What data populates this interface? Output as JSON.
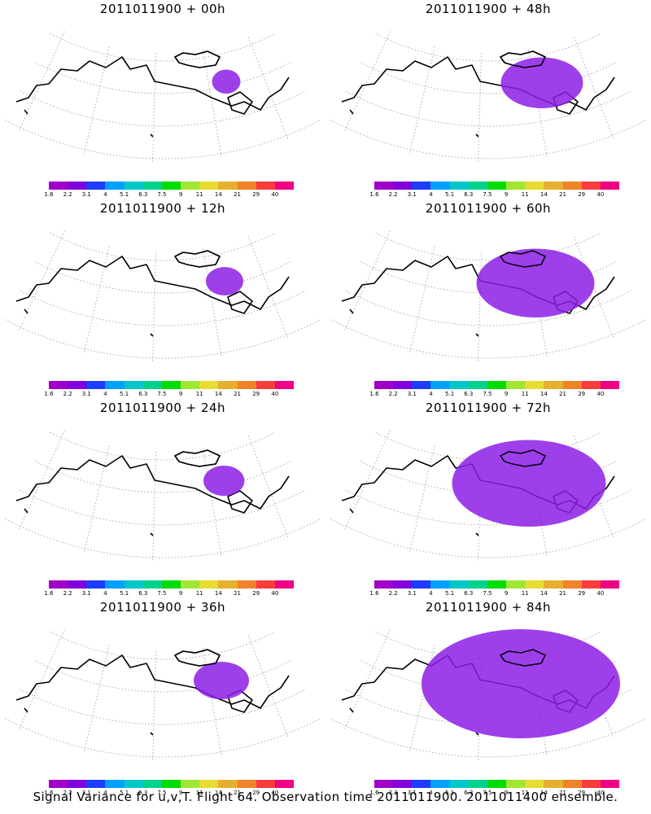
{
  "caption": "Signal Variance for u,v,T. Flight 64. Observation time 2011011900. 2011011400 ensemble.",
  "colorbar": {
    "colors": [
      "#a000c8",
      "#8200dc",
      "#1e3cff",
      "#00a0ff",
      "#00c8c8",
      "#00d28c",
      "#00dc00",
      "#a0e632",
      "#e6dc32",
      "#e6af2d",
      "#f08228",
      "#fa3c3c",
      "#f00082"
    ],
    "labels": [
      "1.6",
      "2.2",
      "3.1",
      "4",
      "5.1",
      "6.3",
      "7.5",
      "9",
      "11",
      "14",
      "21",
      "29",
      "40"
    ]
  },
  "panels": [
    {
      "title": "2011011900 + 00h",
      "spread": 0.05
    },
    {
      "title": "2011011900 + 48h",
      "spread": 0.35
    },
    {
      "title": "2011011900 + 12h",
      "spread": 0.1
    },
    {
      "title": "2011011900 + 60h",
      "spread": 0.55
    },
    {
      "title": "2011011900 + 24h",
      "spread": 0.12
    },
    {
      "title": "2011011900 + 72h",
      "spread": 0.75
    },
    {
      "title": "2011011900 + 36h",
      "spread": 0.2
    },
    {
      "title": "2011011900 + 84h",
      "spread": 1.0
    }
  ]
}
